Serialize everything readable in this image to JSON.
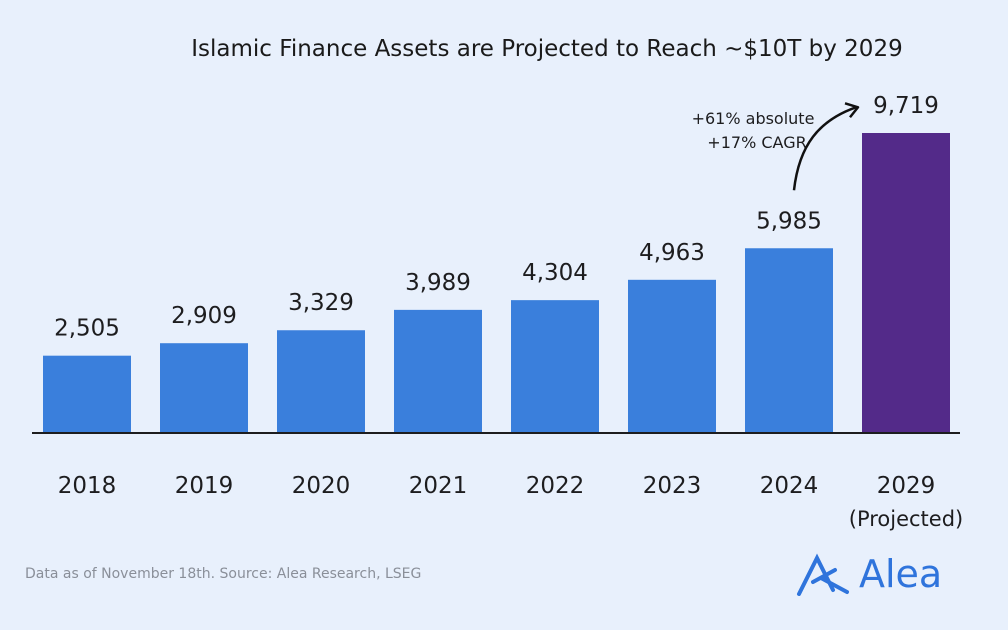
{
  "chart_data": {
    "type": "bar",
    "title": "Islamic Finance Assets are Projected to Reach ~$10T by 2029",
    "categories": [
      "2018",
      "2019",
      "2020",
      "2021",
      "2022",
      "2023",
      "2024",
      "2029"
    ],
    "category_sublabels": {
      "2029": "(Projected)"
    },
    "values": [
      2505,
      2909,
      3329,
      3989,
      4304,
      4963,
      5985,
      9719
    ],
    "value_labels": [
      "2,505",
      "2,909",
      "3,329",
      "3,989",
      "4,304",
      "4,963",
      "5,985",
      "9,719"
    ],
    "colors": {
      "actual": "#3a7fdc",
      "projected": "#532a89"
    },
    "annotation": [
      "+61% absolute",
      "+17% CAGR"
    ],
    "xlabel": "",
    "ylabel": "",
    "ylim": [
      0,
      9719
    ],
    "grid": false
  },
  "footer": {
    "source": "Data as of November 18th. Source: Alea Research, LSEG"
  },
  "logo": {
    "text": "Alea",
    "color": "#2f74dc"
  }
}
